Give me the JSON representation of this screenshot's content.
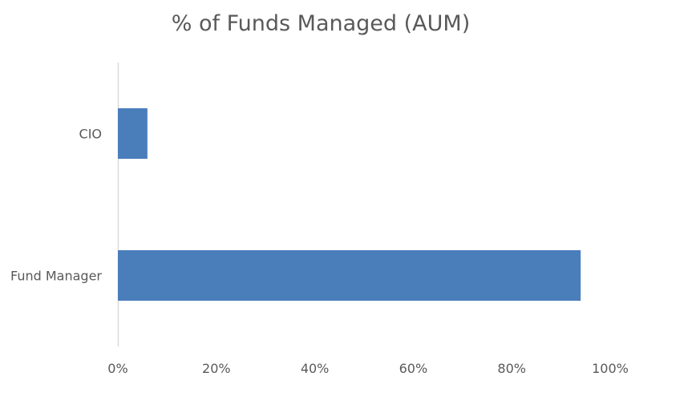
{
  "chart_data": {
    "type": "bar",
    "orientation": "horizontal",
    "title": "% of Funds Managed (AUM)",
    "categories": [
      "CIO",
      "Fund Manager"
    ],
    "values": [
      6,
      94
    ],
    "xlim": [
      0,
      100
    ],
    "x_ticks": [
      "0%",
      "20%",
      "40%",
      "60%",
      "80%",
      "100%"
    ],
    "x_tick_values": [
      0,
      20,
      40,
      60,
      80,
      100
    ],
    "grid": false,
    "legend": "none",
    "bar_color": "#4a7ebb",
    "axis_color": "#d9d9d9"
  }
}
